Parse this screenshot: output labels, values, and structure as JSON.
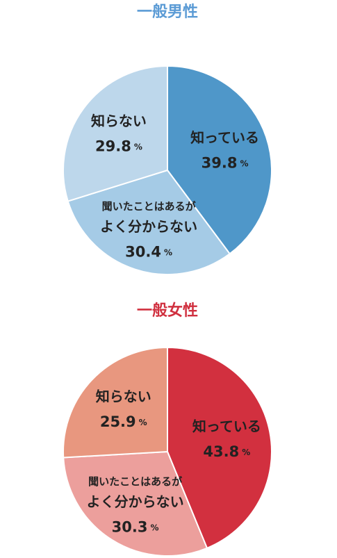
{
  "chart_data": [
    {
      "type": "pie",
      "title": "一般男性",
      "title_color": "#5b9bd5",
      "unit": "%",
      "categories": [
        [
          "知っている"
        ],
        [
          "聞いたことはあるが",
          "よく分からない"
        ],
        [
          "知らない"
        ]
      ],
      "values": [
        39.8,
        30.4,
        29.8
      ],
      "colors": [
        "#4f97c9",
        "#a5cbe6",
        "#bdd7eb"
      ]
    },
    {
      "type": "pie",
      "title": "一般女性",
      "title_color": "#d0303f",
      "unit": "%",
      "categories": [
        [
          "知っている"
        ],
        [
          "聞いたことはあるが",
          "よく分からない"
        ],
        [
          "知らない"
        ]
      ],
      "values": [
        43.8,
        30.3,
        25.9
      ],
      "colors": [
        "#d2303f",
        "#ec9f9c",
        "#e8977f"
      ]
    }
  ]
}
